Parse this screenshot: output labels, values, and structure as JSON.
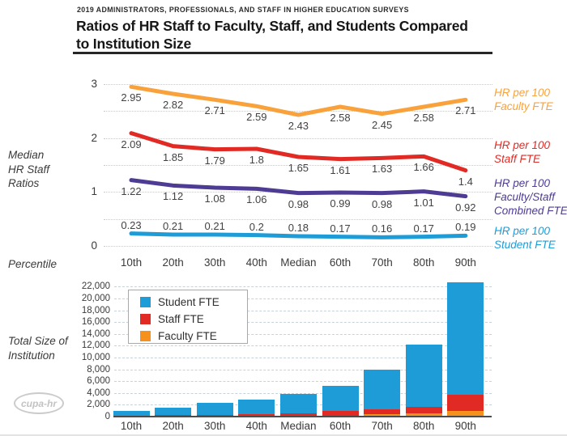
{
  "header": {
    "eyebrow": "2019 ADMINISTRATORS, PROFESSIONALS, AND STAFF IN HIGHER EDUCATION SURVEYS",
    "title_lines": [
      "Ratios of HR Staff to Faculty, Staff, and Students Compared",
      "to Institution Size"
    ],
    "title": "Ratios of HR Staff to Faculty, Staff, and Students Compared to Institution Size"
  },
  "colors": {
    "faculty_line": "#F9A23C",
    "staff_red": "#E22A25",
    "combined_purple": "#4E3B93",
    "student_blue": "#1E9CD8",
    "faculty_bar_orange": "#F6911E",
    "text_dark": "#161616",
    "label_gray": "#3a3a3a"
  },
  "logo": {
    "text": "cupa-hr"
  },
  "chart_data": [
    {
      "type": "line",
      "ylabel": "Median HR Staff Ratios",
      "xlabel": "Percentile",
      "categories": [
        "10th",
        "20th",
        "30th",
        "40th",
        "Median",
        "60th",
        "70th",
        "80th",
        "90th"
      ],
      "ylim": [
        0,
        3
      ],
      "ytick_step": 0.5,
      "yticks": [
        3,
        2,
        1,
        0
      ],
      "grid": "dotted-horizontal",
      "legend_position": "right",
      "series": [
        {
          "name": "HR per 100 Faculty FTE",
          "color": "#F9A23C",
          "label_position": "below",
          "values": [
            2.95,
            2.82,
            2.71,
            2.59,
            2.43,
            2.58,
            2.45,
            2.58,
            2.71
          ]
        },
        {
          "name": "HR per 100 Staff FTE",
          "color": "#E22A25",
          "label_position": "below",
          "values": [
            2.09,
            1.85,
            1.79,
            1.8,
            1.65,
            1.61,
            1.63,
            1.66,
            1.4
          ]
        },
        {
          "name": "HR per 100 Faculty/Staff Combined FTE",
          "color": "#4E3B93",
          "label_position": "below",
          "values": [
            1.22,
            1.12,
            1.08,
            1.06,
            0.98,
            0.99,
            0.98,
            1.01,
            0.92
          ]
        },
        {
          "name": "HR per 100 Student FTE",
          "color": "#1E9CD8",
          "label_position": "above",
          "values": [
            0.23,
            0.21,
            0.21,
            0.2,
            0.18,
            0.17,
            0.16,
            0.17,
            0.19
          ]
        }
      ]
    },
    {
      "type": "bar",
      "stacked": true,
      "ylabel": "Total Size of Institution",
      "categories": [
        "10th",
        "20th",
        "30th",
        "40th",
        "Median",
        "60th",
        "70th",
        "80th",
        "90th"
      ],
      "ylim": [
        0,
        22000
      ],
      "ytick_step": 2000,
      "grid": "dashed-horizontal",
      "legend_position": "top-left-inside",
      "legend_items": [
        {
          "label": "Student FTE",
          "color": "#1E9CD8"
        },
        {
          "label": "Staff FTE",
          "color": "#E22A25"
        },
        {
          "label": "Faculty FTE",
          "color": "#F6911E"
        }
      ],
      "series": [
        {
          "name": "Faculty FTE",
          "color": "#F6911E",
          "values": [
            40,
            60,
            80,
            100,
            150,
            200,
            450,
            600,
            1000
          ]
        },
        {
          "name": "Staff FTE",
          "color": "#E22A25",
          "values": [
            120,
            180,
            220,
            280,
            400,
            700,
            800,
            1000,
            2750
          ]
        },
        {
          "name": "Student FTE",
          "color": "#1E9CD8",
          "values": [
            840,
            1260,
            2080,
            2520,
            3250,
            4300,
            6700,
            10600,
            18950
          ]
        }
      ]
    }
  ]
}
